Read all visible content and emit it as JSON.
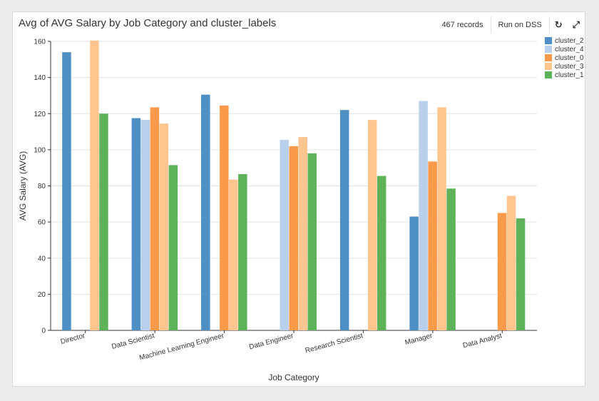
{
  "header": {
    "title": "Avg of AVG Salary by Job Category and cluster_labels",
    "records": "467 records",
    "run_label": "Run on DSS",
    "refresh_icon": "refresh-icon",
    "expand_icon": "expand-icon"
  },
  "colors": {
    "cluster_2": "#4e8fc4",
    "cluster_4": "#b9d0ec",
    "cluster_0": "#fb9a4a",
    "cluster_3": "#ffc58e",
    "cluster_1": "#5eb35a"
  },
  "chart_data": {
    "type": "bar",
    "title": "Avg of AVG Salary by Job Category and cluster_labels",
    "xlabel": "Job Category",
    "ylabel": "AVG Salary (AVG)",
    "ylim": [
      0,
      160
    ],
    "yticks": [
      "0",
      "20",
      "40",
      "60",
      "80",
      "100",
      "120",
      "140",
      "160"
    ],
    "grid": true,
    "legend_position": "top-right",
    "categories": [
      "Director",
      "Data Scientist",
      "Machine Learning Engineer",
      "Data Engineer",
      "Research Scientist",
      "Manager",
      "Data Analyst"
    ],
    "series": [
      {
        "name": "cluster_2",
        "values": [
          154,
          117.5,
          130.5,
          null,
          122,
          63,
          null
        ]
      },
      {
        "name": "cluster_4",
        "values": [
          null,
          116.5,
          null,
          105.5,
          null,
          127,
          null
        ]
      },
      {
        "name": "cluster_0",
        "values": [
          null,
          123.5,
          124.5,
          102,
          null,
          93.5,
          65
        ]
      },
      {
        "name": "cluster_3",
        "values": [
          160.5,
          114.5,
          83.5,
          107,
          116.5,
          123.5,
          74.5
        ]
      },
      {
        "name": "cluster_1",
        "values": [
          120,
          91.5,
          86.5,
          98,
          85.5,
          78.5,
          62
        ]
      }
    ]
  }
}
